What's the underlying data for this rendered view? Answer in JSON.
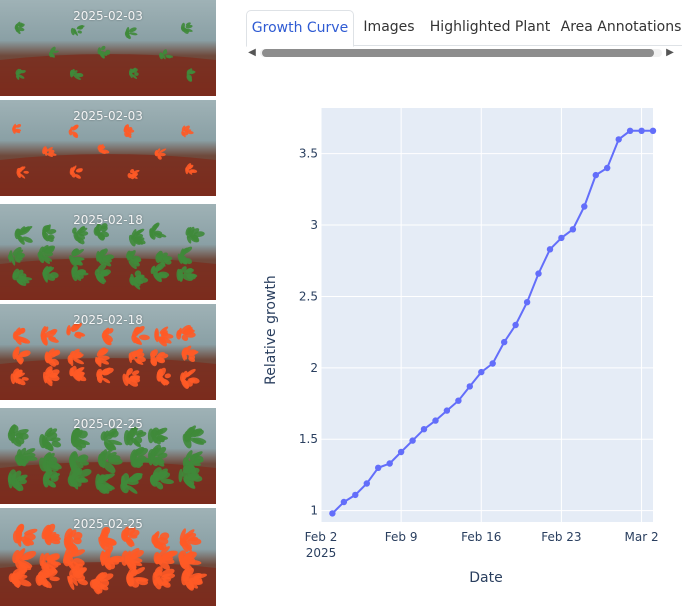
{
  "thumbnails": [
    {
      "date": "2025-02-03",
      "kind": "plain"
    },
    {
      "date": "2025-02-03",
      "kind": "highlighted"
    },
    {
      "date": "2025-02-18",
      "kind": "plain"
    },
    {
      "date": "2025-02-18",
      "kind": "highlighted"
    },
    {
      "date": "2025-02-25",
      "kind": "plain"
    },
    {
      "date": "2025-02-25",
      "kind": "highlighted"
    }
  ],
  "tabs": [
    "Growth Curve",
    "Images",
    "Highlighted Plant",
    "Area Annotations"
  ],
  "active_tab": "Growth Curve",
  "colors": {
    "line": "#636efa",
    "plot_bg": "#e5ecf6",
    "tab_active": "#2f5bd3",
    "highlight": "#ff5a26",
    "plant": "#3f8a3a"
  },
  "chart_data": {
    "type": "line",
    "xlabel": "Date",
    "ylabel": "Relative growth",
    "x_ticks": [
      "Feb 2\n2025",
      "Feb 9",
      "Feb 16",
      "Feb 23",
      "Mar 2"
    ],
    "y_ticks": [
      "1",
      "1.5",
      "2",
      "2.5",
      "3",
      "3.5"
    ],
    "xlim": [
      "2025-02-02",
      "2025-03-03"
    ],
    "ylim": [
      0.92,
      3.82
    ],
    "series": [
      {
        "x": [
          "2025-02-03",
          "2025-02-04",
          "2025-02-05",
          "2025-02-06",
          "2025-02-07",
          "2025-02-08",
          "2025-02-09",
          "2025-02-10",
          "2025-02-11",
          "2025-02-12",
          "2025-02-13",
          "2025-02-14",
          "2025-02-15",
          "2025-02-16",
          "2025-02-17",
          "2025-02-18",
          "2025-02-19",
          "2025-02-20",
          "2025-02-21",
          "2025-02-22",
          "2025-02-23",
          "2025-02-24",
          "2025-02-25",
          "2025-02-26",
          "2025-02-27",
          "2025-02-28",
          "2025-03-01",
          "2025-03-02",
          "2025-03-03"
        ],
        "y": [
          0.98,
          1.06,
          1.11,
          1.19,
          1.3,
          1.33,
          1.41,
          1.49,
          1.57,
          1.63,
          1.7,
          1.77,
          1.87,
          1.97,
          2.03,
          2.18,
          2.3,
          2.46,
          2.66,
          2.83,
          2.91,
          2.97,
          3.13,
          3.35,
          3.4,
          3.6,
          3.66,
          3.66,
          3.66
        ]
      }
    ],
    "grid": true
  }
}
